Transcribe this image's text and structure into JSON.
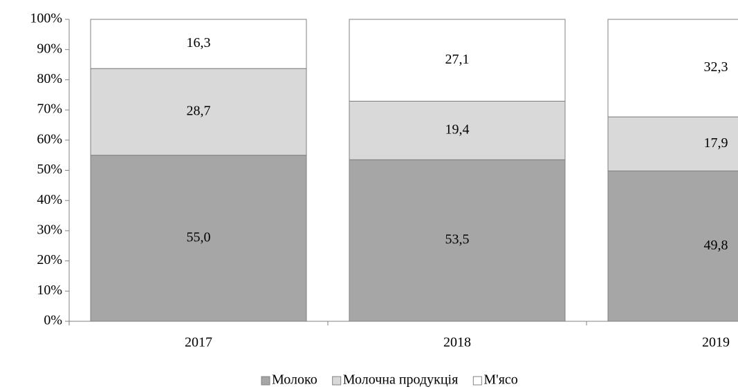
{
  "chart_data": {
    "type": "stacked_bar",
    "categories": [
      "2017",
      "2018",
      "2019"
    ],
    "series": [
      {
        "name": "Молоко",
        "color": "#a6a6a6",
        "values": [
          55.0,
          53.5,
          49.8
        ],
        "value_labels": [
          "55,0",
          "53,5",
          "49,8"
        ]
      },
      {
        "name": "Молочна продукція",
        "color": "#d9d9d9",
        "values": [
          28.7,
          19.4,
          17.9
        ],
        "value_labels": [
          "28,7",
          "19,4",
          "17,9"
        ]
      },
      {
        "name": "М'ясо",
        "color": "#ffffff",
        "values": [
          16.3,
          27.1,
          32.3
        ],
        "value_labels": [
          "16,3",
          "27,1",
          "32,3"
        ]
      }
    ],
    "ylim": [
      0,
      100
    ],
    "yticks": [
      {
        "value": 0,
        "label": "0%"
      },
      {
        "value": 10,
        "label": "10%"
      },
      {
        "value": 20,
        "label": "20%"
      },
      {
        "value": 30,
        "label": "30%"
      },
      {
        "value": 40,
        "label": "40%"
      },
      {
        "value": 50,
        "label": "50%"
      },
      {
        "value": 60,
        "label": "60%"
      },
      {
        "value": 70,
        "label": "70%"
      },
      {
        "value": 80,
        "label": "80%"
      },
      {
        "value": 90,
        "label": "90%"
      },
      {
        "value": 100,
        "label": "100%"
      }
    ],
    "legend": "bottom"
  }
}
